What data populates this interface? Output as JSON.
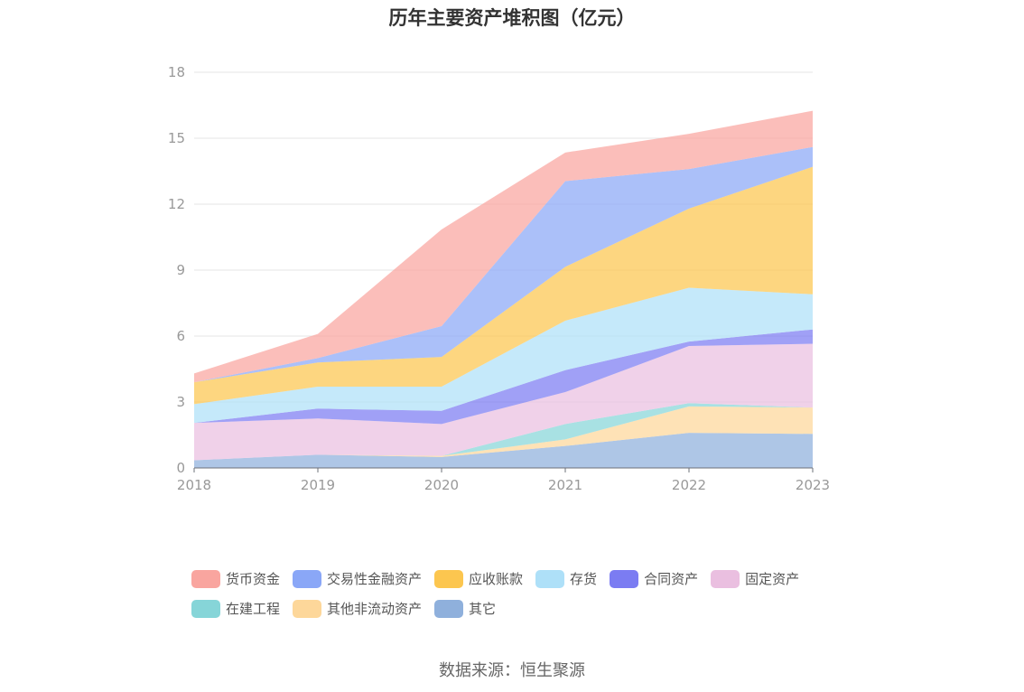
{
  "chart_data": {
    "type": "area",
    "stacked": true,
    "title": "历年主要资产堆积图（亿元）",
    "xlabel": "",
    "ylabel": "",
    "ylim": [
      0,
      18
    ],
    "yticks": [
      0,
      3,
      6,
      9,
      12,
      15,
      18
    ],
    "grid": true,
    "legend_position": "bottom",
    "x": [
      "2018",
      "2019",
      "2020",
      "2021",
      "2022",
      "2023"
    ],
    "series": [
      {
        "name": "其它",
        "color": "#8fb0dc",
        "values": [
          0.35,
          0.6,
          0.5,
          1.0,
          1.6,
          1.55
        ]
      },
      {
        "name": "其他非流动资产",
        "color": "#fdd79a",
        "values": [
          0.0,
          0.0,
          0.05,
          0.3,
          1.2,
          1.2
        ]
      },
      {
        "name": "在建工程",
        "color": "#86d5d8",
        "values": [
          0.0,
          0.0,
          0.0,
          0.7,
          0.15,
          0.0
        ]
      },
      {
        "name": "固定资产",
        "color": "#eabfe0",
        "values": [
          1.7,
          1.65,
          1.45,
          1.45,
          2.6,
          2.9
        ]
      },
      {
        "name": "合同资产",
        "color": "#7b7cf2",
        "values": [
          0.0,
          0.45,
          0.6,
          1.0,
          0.2,
          0.65
        ]
      },
      {
        "name": "存货",
        "color": "#aee0f8",
        "values": [
          0.85,
          1.0,
          1.1,
          2.25,
          2.45,
          1.6
        ]
      },
      {
        "name": "应收账款",
        "color": "#fcc64f",
        "values": [
          1.0,
          1.1,
          1.35,
          2.45,
          3.6,
          5.8
        ]
      },
      {
        "name": "交易性金融资产",
        "color": "#8aa7f7",
        "values": [
          0.0,
          0.2,
          1.4,
          3.9,
          1.8,
          0.9
        ]
      },
      {
        "name": "货币资金",
        "color": "#f9a59f",
        "values": [
          0.4,
          1.1,
          4.4,
          1.3,
          1.6,
          1.65
        ]
      }
    ]
  },
  "legend": [
    {
      "label": "货币资金",
      "color": "#f9a59f"
    },
    {
      "label": "交易性金融资产",
      "color": "#8aa7f7"
    },
    {
      "label": "应收账款",
      "color": "#fcc64f"
    },
    {
      "label": "存货",
      "color": "#aee0f8"
    },
    {
      "label": "合同资产",
      "color": "#7b7cf2"
    },
    {
      "label": "固定资产",
      "color": "#eabfe0"
    },
    {
      "label": "在建工程",
      "color": "#86d5d8"
    },
    {
      "label": "其他非流动资产",
      "color": "#fdd79a"
    },
    {
      "label": "其它",
      "color": "#8fb0dc"
    }
  ],
  "source": "数据来源：恒生聚源"
}
